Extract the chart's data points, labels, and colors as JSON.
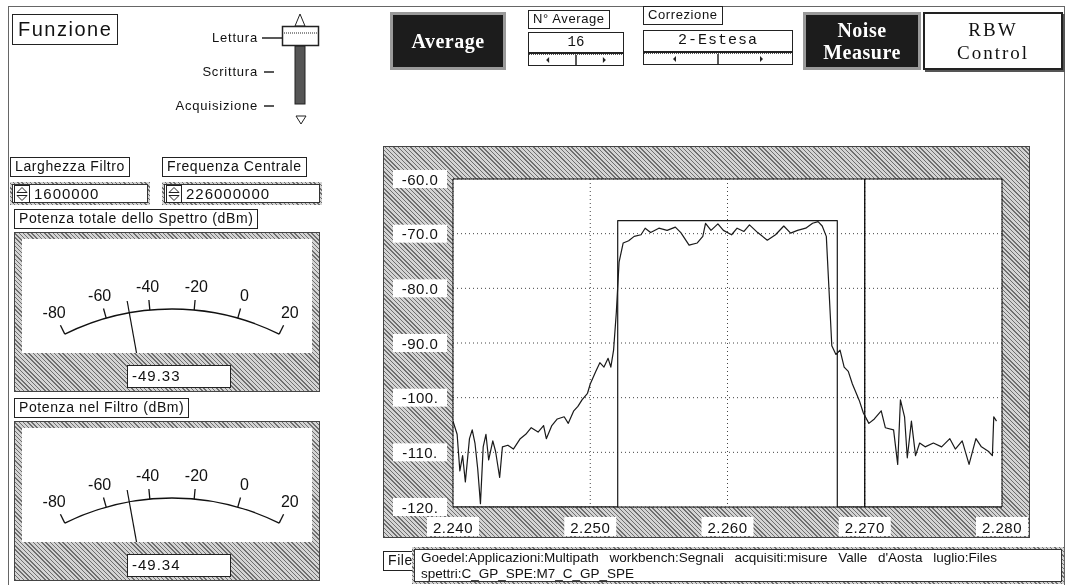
{
  "chart_data": [
    {
      "type": "other",
      "annotations": [
        "Funzione",
        "Lettura",
        "Scrittura",
        "Acquisizione",
        "Larghezza Filtro",
        "Frequenza Centrale",
        "1600000",
        "226000000"
      ]
    },
    {
      "type": "other",
      "title": "Potenza totale dello Spettro (dBm)",
      "values": [
        -49.33
      ],
      "data_labels": true,
      "annotations": [
        "-80",
        "-60",
        "-40",
        "-20",
        "0",
        "20"
      ]
    },
    {
      "type": "other",
      "title": "Potenza nel Filtro (dBm)",
      "values": [
        -49.34
      ],
      "data_labels": true,
      "annotations": [
        "-80",
        "-60",
        "-40",
        "-20",
        "0",
        "20"
      ]
    },
    {
      "type": "other",
      "annotations": [
        "Average",
        "N° Average",
        "16",
        "Correzione",
        "2-Estesa",
        "Noise Measure",
        "RBW Control"
      ]
    },
    {
      "type": "line",
      "xlim": [
        2.24,
        2.28
      ],
      "xticks": [
        {
          "value": 2.24,
          "label": "2.240"
        },
        {
          "value": 2.25,
          "label": "2.250"
        },
        {
          "value": 2.26,
          "label": "2.260"
        },
        {
          "value": 2.27,
          "label": "2.270"
        },
        {
          "value": 2.28,
          "label": "2.280"
        }
      ],
      "ylim": [
        -120,
        -60
      ],
      "yticks": [
        {
          "value": -60,
          "label": "-60.0"
        },
        {
          "value": -70,
          "label": "-70.0"
        },
        {
          "value": -80,
          "label": "-80.0"
        },
        {
          "value": -90,
          "label": "-90.0"
        },
        {
          "value": -100,
          "label": "-100."
        },
        {
          "value": -110,
          "label": "-110."
        },
        {
          "value": -120,
          "label": "-120."
        }
      ],
      "grid": true,
      "marker": "none",
      "ref_lines": [
        {
          "axis": "x",
          "value": 2.27,
          "color": "#000000"
        }
      ],
      "series": [
        {
          "color": "#1a1a1a",
          "x": [
            2.24,
            2.2403,
            2.2405,
            2.2407,
            2.2409,
            2.2412,
            2.2414,
            2.2416,
            2.2418,
            2.242,
            2.2422,
            2.2424,
            2.2426,
            2.2429,
            2.2431,
            2.2434,
            2.2436,
            2.244,
            2.2444,
            2.2449,
            2.2453,
            2.2457,
            2.2462,
            2.2466,
            2.2468,
            2.2472,
            2.2476,
            2.2481,
            2.2484,
            2.2488,
            2.2491,
            2.2494,
            2.2498,
            2.25,
            2.2504,
            2.2507,
            2.251,
            2.2513,
            2.2515,
            2.2517,
            2.2519,
            2.2521,
            2.2524,
            2.2528,
            2.2532,
            2.2537,
            2.254,
            2.2544,
            2.255,
            2.2556,
            2.2562,
            2.2566,
            2.2572,
            2.2578,
            2.2582,
            2.2584,
            2.2588,
            2.2593,
            2.2597,
            2.2603,
            2.2607,
            2.2612,
            2.2616,
            2.2622,
            2.2629,
            2.2635,
            2.2641,
            2.2646,
            2.2651,
            2.2657,
            2.2662,
            2.2666,
            2.2669,
            2.2672,
            2.2674,
            2.2676,
            2.2679,
            2.2682,
            2.2685,
            2.2688,
            2.2691,
            2.2696,
            2.2699,
            2.2703,
            2.2707,
            2.2712,
            2.2715,
            2.2721,
            2.2724,
            2.2726,
            2.2729,
            2.2731,
            2.2734,
            2.2737,
            2.274,
            2.2744,
            2.275,
            2.2756,
            2.2762,
            2.2766,
            2.2771,
            2.2776,
            2.2781,
            2.2785,
            2.279,
            2.2793,
            2.2794,
            2.2796
          ],
          "values": [
            -104.3,
            -106.7,
            -113.4,
            -110.6,
            -115.4,
            -107.5,
            -105.9,
            -108.3,
            -113,
            -119.4,
            -109,
            -106.7,
            -111.4,
            -107.9,
            -109.8,
            -114.6,
            -109,
            -108.7,
            -109.4,
            -107.5,
            -106.7,
            -105.5,
            -106.3,
            -105.1,
            -107.5,
            -105.1,
            -103.9,
            -103.5,
            -104.7,
            -102.4,
            -101.6,
            -100.4,
            -99.2,
            -97.5,
            -95.2,
            -93.6,
            -94.4,
            -92.8,
            -94.4,
            -91.3,
            -84.4,
            -75.2,
            -71.7,
            -71.3,
            -70.5,
            -70.2,
            -69,
            -69.8,
            -69,
            -69.4,
            -68.8,
            -69.8,
            -72.1,
            -71.7,
            -70.5,
            -68.1,
            -69.4,
            -68.2,
            -69.4,
            -70.2,
            -69,
            -69.6,
            -68.4,
            -69.8,
            -71.2,
            -70.2,
            -68.6,
            -69.9,
            -69.4,
            -69,
            -68.1,
            -67.8,
            -68.6,
            -70.5,
            -80.5,
            -90.5,
            -92.1,
            -91.3,
            -94.4,
            -95.2,
            -97.5,
            -100.5,
            -102.8,
            -104.7,
            -103.9,
            -102.4,
            -105.5,
            -105.9,
            -112.2,
            -100.4,
            -103.5,
            -111,
            -104.3,
            -110.6,
            -108.3,
            -109,
            -108.3,
            -109,
            -107.5,
            -109.4,
            -107.9,
            -112.2,
            -107.5,
            -109,
            -109.8,
            -110.6,
            -103.5,
            -104.3
          ]
        },
        {
          "color": "#1a1a1a",
          "x": [
            2.24,
            2.252,
            2.252,
            2.268,
            2.268,
            2.28
          ],
          "values": [
            -120,
            -120,
            -67.6,
            -67.6,
            -120,
            -120
          ]
        }
      ]
    },
    {
      "type": "other",
      "annotations": [
        "File",
        "Goedel:Applicazioni:Multipath workbench:Segnali acquisiti:misure Valle d'Aosta luglio:Files spettri:C_GP_SPE:M7_C_GP_SPE"
      ]
    }
  ]
}
